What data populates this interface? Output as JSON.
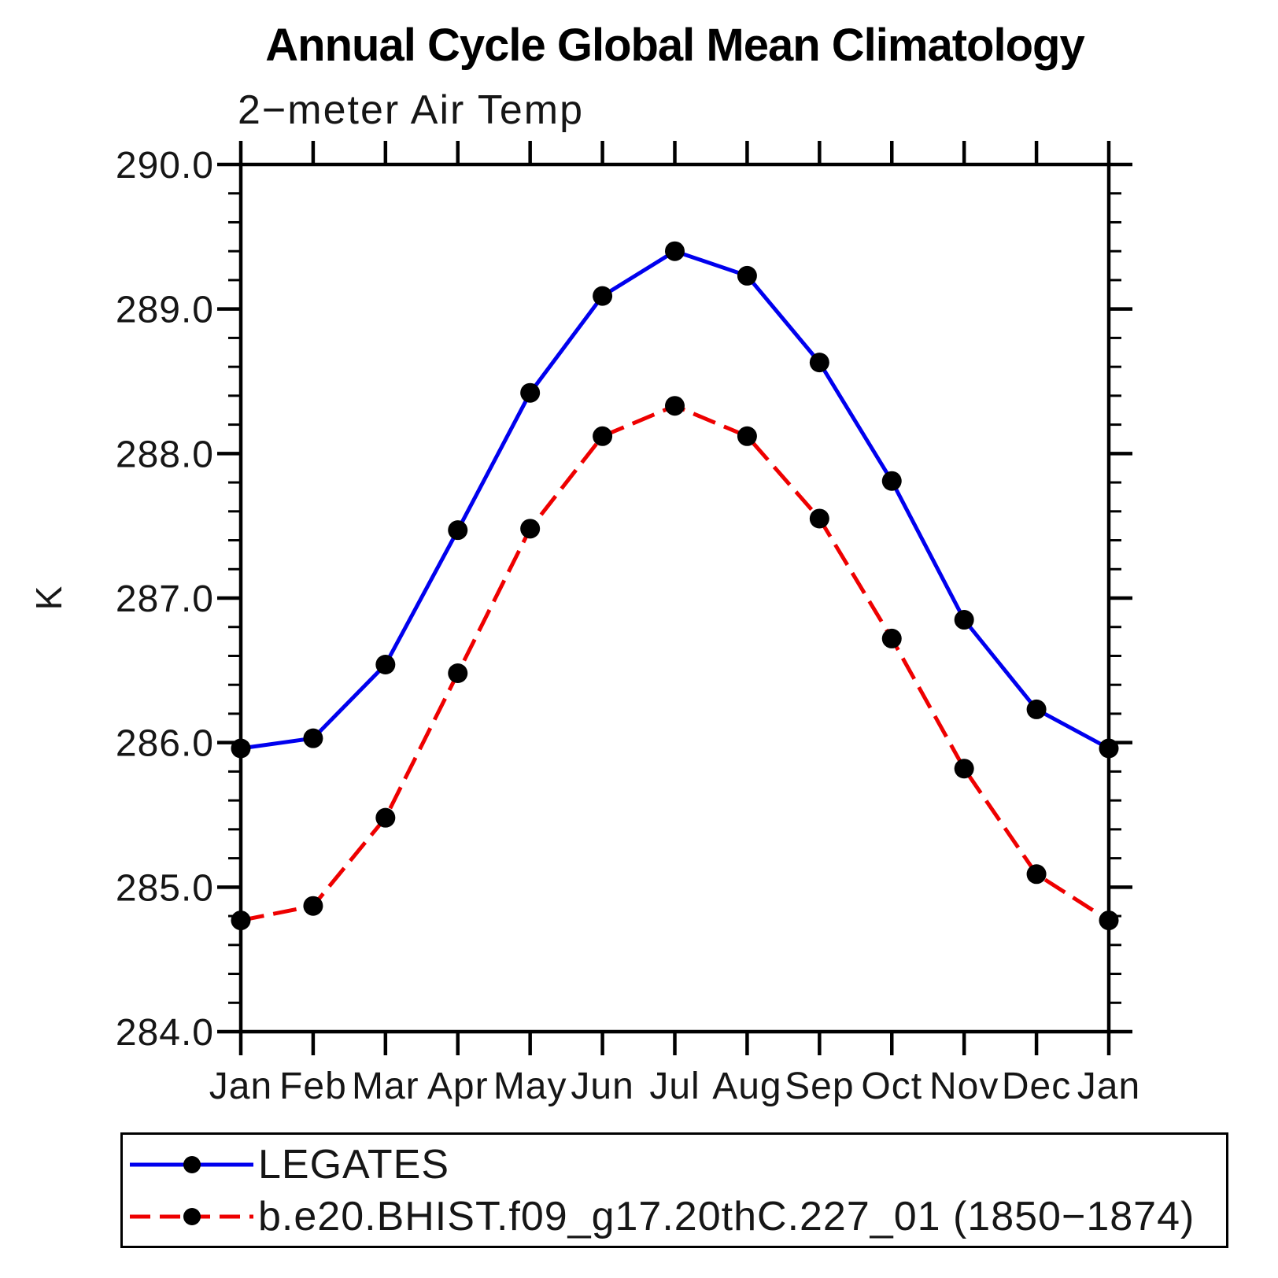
{
  "page": {
    "background": "#ffffff"
  },
  "chart_data": {
    "type": "line",
    "title": "Annual Cycle Global Mean Climatology",
    "subtitle": "2−meter Air Temp",
    "ylabel": "K",
    "x_categories": [
      "Jan",
      "Feb",
      "Mar",
      "Apr",
      "May",
      "Jun",
      "Jul",
      "Aug",
      "Sep",
      "Oct",
      "Nov",
      "Dec",
      "Jan"
    ],
    "ylim": [
      284.0,
      290.0
    ],
    "y_major_step": 1.0,
    "y_minor_step": 0.2,
    "y_tick_labels": [
      "284.0",
      "285.0",
      "286.0",
      "287.0",
      "288.0",
      "289.0",
      "290.0"
    ],
    "grid": false,
    "axis_color": "#000000",
    "legend_position": "bottom-left",
    "series": [
      {
        "name": "LEGATES",
        "color": "#0000ee",
        "style": "solid",
        "marker": "filled-circle",
        "marker_color": "#000000",
        "values": [
          285.96,
          286.03,
          286.54,
          287.47,
          288.42,
          289.09,
          289.4,
          289.23,
          288.63,
          287.81,
          286.85,
          286.23,
          285.96
        ]
      },
      {
        "name": "b.e20.BHIST.f09_g17.20thC.227_01 (1850−1874)",
        "color": "#ee0000",
        "style": "dashed",
        "marker": "filled-circle",
        "marker_color": "#000000",
        "values": [
          284.77,
          284.87,
          285.48,
          286.48,
          287.48,
          288.12,
          288.33,
          288.12,
          287.55,
          286.72,
          285.82,
          285.09,
          284.77
        ]
      }
    ]
  }
}
